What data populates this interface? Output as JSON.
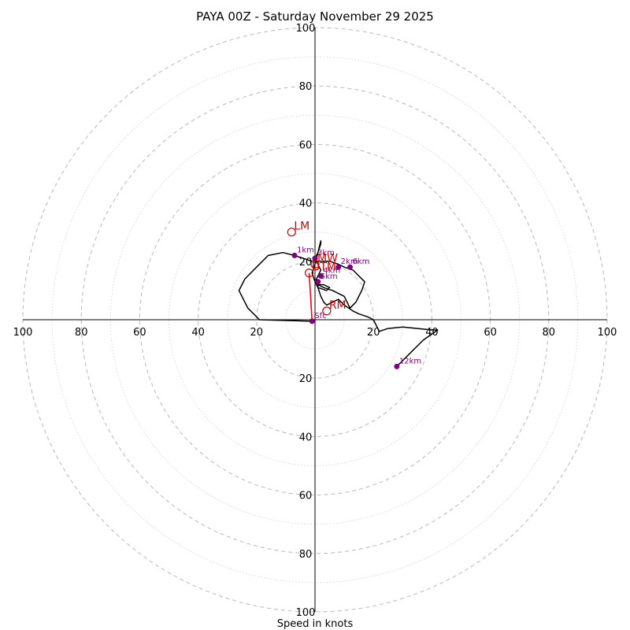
{
  "chart_data": {
    "type": "hodograph",
    "title": "PAYA 00Z - Saturday November 29 2025",
    "xlabel": "Speed in knots",
    "units": "knots",
    "range": 100,
    "ring_labels": [
      "20",
      "40",
      "60",
      "80",
      "100"
    ],
    "grid": true,
    "axis_tick_labels": {
      "left": [
        "100",
        "80",
        "60",
        "40",
        "20"
      ],
      "right": [
        "20",
        "40",
        "60",
        "80",
        "100"
      ],
      "top": [
        "20",
        "40",
        "60",
        "80",
        "100"
      ],
      "bottom": [
        "20",
        "40",
        "60",
        "80",
        "100"
      ]
    },
    "hodograph_trace": {
      "color": "#000000",
      "points": [
        [
          -1,
          -0.5
        ],
        [
          -19,
          0
        ],
        [
          -23,
          4
        ],
        [
          -26,
          10
        ],
        [
          -24,
          14
        ],
        [
          -20,
          18
        ],
        [
          -16,
          22
        ],
        [
          -11,
          23
        ],
        [
          -7,
          22
        ],
        [
          -4,
          21
        ],
        [
          -1,
          20
        ],
        [
          2,
          20
        ],
        [
          5,
          20
        ],
        [
          8,
          19
        ],
        [
          10,
          18
        ],
        [
          13,
          17
        ],
        [
          15,
          15
        ],
        [
          17,
          13
        ],
        [
          16,
          10
        ],
        [
          14,
          6
        ],
        [
          12,
          4
        ],
        [
          10,
          8
        ],
        [
          6,
          10
        ],
        [
          3,
          11
        ],
        [
          1,
          12
        ],
        [
          0,
          13
        ],
        [
          1,
          15
        ],
        [
          2,
          17
        ],
        [
          1,
          19
        ],
        [
          0,
          21
        ],
        [
          1,
          23
        ],
        [
          2,
          26
        ],
        [
          2,
          27
        ],
        [
          1,
          23
        ],
        [
          0,
          19
        ],
        [
          -1,
          16
        ],
        [
          0,
          13
        ],
        [
          1,
          11
        ],
        [
          4,
          10
        ],
        [
          5,
          11
        ],
        [
          3,
          12
        ],
        [
          1,
          12
        ],
        [
          1,
          11
        ],
        [
          2,
          8
        ],
        [
          3,
          6
        ],
        [
          4,
          5
        ],
        [
          6,
          6
        ],
        [
          8,
          7
        ],
        [
          10,
          5
        ],
        [
          13,
          3
        ],
        [
          15,
          2
        ],
        [
          18,
          1
        ],
        [
          20,
          0
        ],
        [
          22,
          -4
        ],
        [
          25,
          -3
        ],
        [
          30,
          -2.5
        ],
        [
          35,
          -3
        ],
        [
          40,
          -3.5
        ],
        [
          42,
          -3.5
        ],
        [
          37,
          -7
        ],
        [
          33,
          -11
        ],
        [
          28,
          -16
        ]
      ]
    },
    "height_markers": [
      {
        "label": "Sfc",
        "u": -1,
        "v": -0.5
      },
      {
        "label": "1km",
        "u": -7,
        "v": 22
      },
      {
        "label": "3km",
        "u": 0,
        "v": 21
      },
      {
        "label": "2km",
        "u": 8,
        "v": 18
      },
      {
        "label": "6km",
        "u": 12,
        "v": 18
      },
      {
        "label": "4km",
        "u": 2,
        "v": 15
      },
      {
        "label": "5km",
        "u": 1,
        "v": 13
      },
      {
        "label": "12km",
        "u": 28,
        "v": -16
      }
    ],
    "storm_motion": [
      {
        "label": "LM",
        "u": -8,
        "v": 30
      },
      {
        "label": "RM",
        "u": 4,
        "v": 3
      },
      {
        "label": "MW",
        "u": 0,
        "v": 19
      },
      {
        "label": "DTM",
        "u": -2,
        "v": 16
      }
    ],
    "shear_vector": {
      "color": "#ff0000",
      "from": [
        -1,
        -0.5
      ],
      "to": [
        -2,
        16
      ]
    },
    "colors": {
      "trace": "#000000",
      "height_marker": "#800080",
      "storm_motion": "#d00000",
      "grid": "#b0b0b0"
    }
  }
}
